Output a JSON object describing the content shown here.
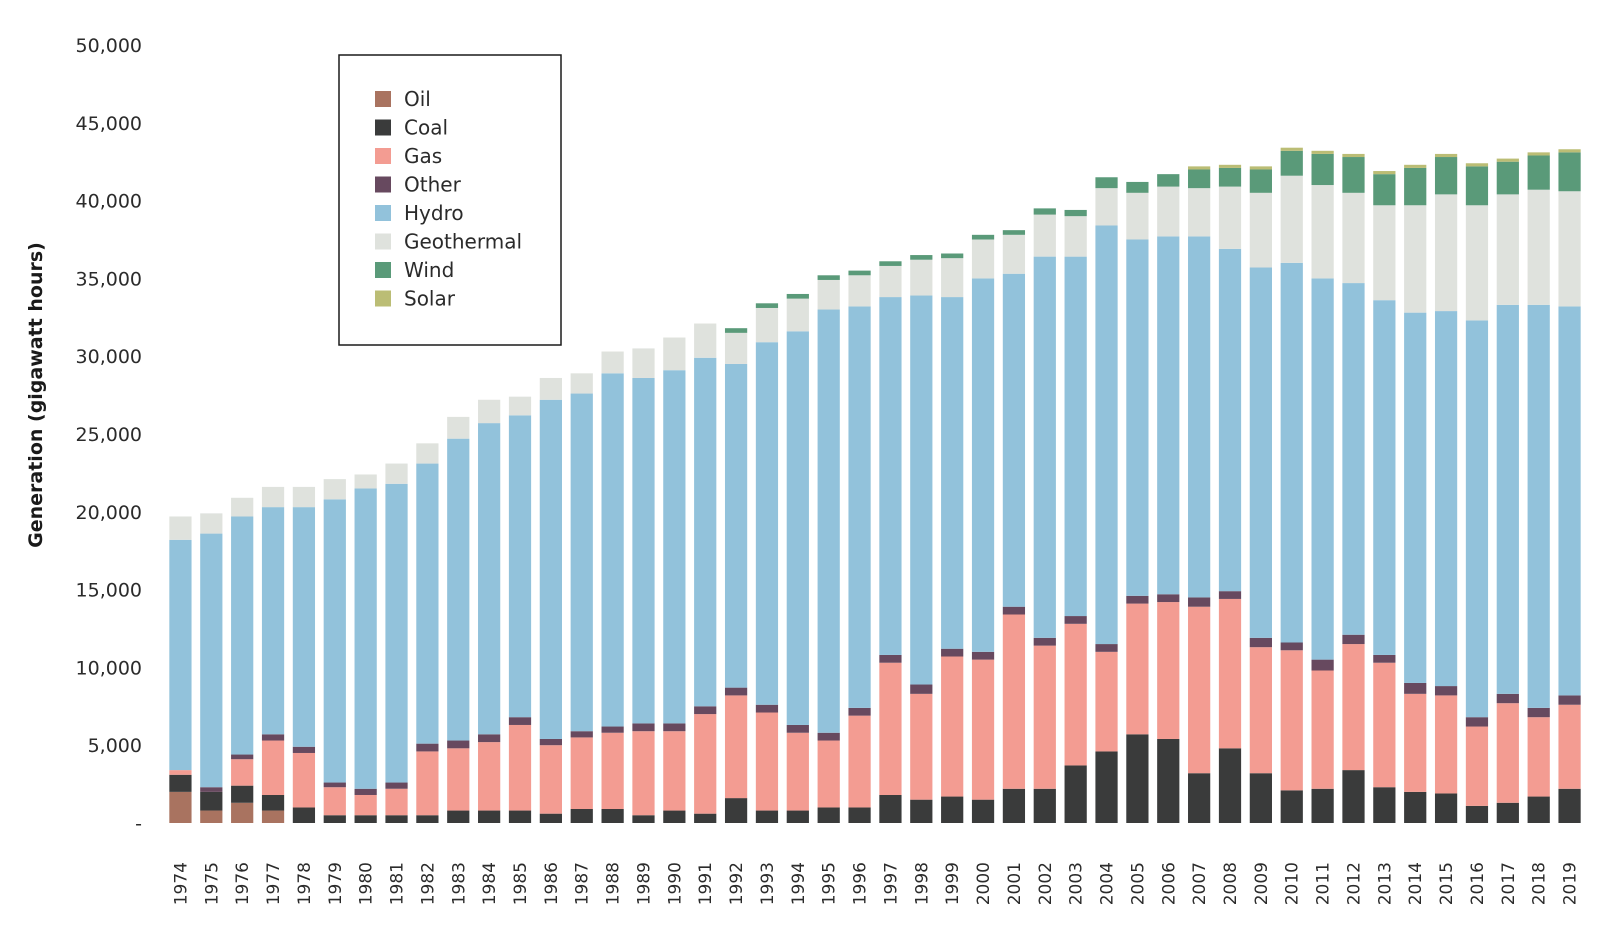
{
  "chart_data": {
    "type": "bar",
    "stacked": true,
    "title": "",
    "xlabel": "",
    "ylabel": "Generation (gigawatt hours)",
    "ylim": [
      0,
      50000
    ],
    "yticks": [
      0,
      5000,
      10000,
      15000,
      20000,
      25000,
      30000,
      35000,
      40000,
      45000,
      50000
    ],
    "ytick_labels": [
      "-",
      "5,000",
      "10,000",
      "15,000",
      "20,000",
      "25,000",
      "30,000",
      "35,000",
      "40,000",
      "45,000",
      "50,000"
    ],
    "grid": false,
    "legend_position": "top-left",
    "categories": [
      "1974",
      "1975",
      "1976",
      "1977",
      "1978",
      "1979",
      "1980",
      "1981",
      "1982",
      "1983",
      "1984",
      "1985",
      "1986",
      "1987",
      "1988",
      "1989",
      "1990",
      "1991",
      "1992",
      "1993",
      "1994",
      "1995",
      "1996",
      "1997",
      "1998",
      "1999",
      "2000",
      "2001",
      "2002",
      "2003",
      "2004",
      "2005",
      "2006",
      "2007",
      "2008",
      "2009",
      "2010",
      "2011",
      "2012",
      "2013",
      "2014",
      "2015",
      "2016",
      "2017",
      "2018",
      "2019"
    ],
    "series": [
      {
        "name": "Oil",
        "color": "#a97360",
        "values": [
          2000,
          800,
          1300,
          800,
          0,
          0,
          0,
          0,
          0,
          0,
          0,
          0,
          0,
          0,
          0,
          0,
          0,
          0,
          0,
          0,
          0,
          0,
          0,
          0,
          0,
          0,
          0,
          0,
          0,
          0,
          0,
          0,
          0,
          0,
          0,
          0,
          0,
          0,
          0,
          0,
          0,
          0,
          0,
          0,
          0,
          0
        ]
      },
      {
        "name": "Coal",
        "color": "#3a3b3b",
        "values": [
          1100,
          1200,
          1100,
          1000,
          1000,
          500,
          500,
          500,
          500,
          800,
          800,
          800,
          600,
          900,
          900,
          500,
          800,
          600,
          1600,
          800,
          800,
          1000,
          1000,
          1800,
          1500,
          1700,
          1500,
          2200,
          2200,
          3700,
          4600,
          5700,
          5400,
          3200,
          4800,
          3200,
          2100,
          2200,
          3400,
          2300,
          2000,
          1900,
          1100,
          1300,
          1700,
          2200
        ]
      },
      {
        "name": "Gas",
        "color": "#f39c92",
        "values": [
          300,
          0,
          1700,
          3500,
          3500,
          1800,
          1300,
          1700,
          4100,
          4000,
          4400,
          5500,
          4400,
          4600,
          4900,
          5400,
          5100,
          6400,
          6600,
          6300,
          5000,
          4300,
          5900,
          8500,
          6800,
          9000,
          9000,
          11200,
          9200,
          9100,
          6400,
          8400,
          8800,
          10700,
          9600,
          8100,
          9000,
          7600,
          8100,
          8000,
          6300,
          6300,
          5100,
          6400,
          5100,
          5400
        ]
      },
      {
        "name": "Other",
        "color": "#67495f",
        "values": [
          0,
          300,
          300,
          400,
          400,
          300,
          400,
          400,
          500,
          500,
          500,
          500,
          400,
          400,
          400,
          500,
          500,
          500,
          500,
          500,
          500,
          500,
          500,
          500,
          600,
          500,
          500,
          500,
          500,
          500,
          500,
          500,
          500,
          600,
          500,
          600,
          500,
          700,
          600,
          500,
          700,
          600,
          600,
          600,
          600,
          600
        ]
      },
      {
        "name": "Hydro",
        "color": "#92c2db",
        "values": [
          14800,
          16300,
          15300,
          14600,
          15400,
          18200,
          19300,
          19200,
          18000,
          19400,
          20000,
          19400,
          21800,
          21700,
          22700,
          22200,
          22700,
          22400,
          20800,
          23300,
          25300,
          27200,
          25800,
          23000,
          25000,
          22600,
          24000,
          21400,
          24500,
          23100,
          26900,
          22900,
          23000,
          23200,
          22000,
          23800,
          24400,
          24500,
          22600,
          22800,
          23800,
          24100,
          25500,
          25000,
          25900,
          25000
        ]
      },
      {
        "name": "Geothermal",
        "color": "#dfe2dd",
        "values": [
          1500,
          1300,
          1200,
          1300,
          1300,
          1300,
          900,
          1300,
          1300,
          1400,
          1500,
          1200,
          1400,
          1300,
          1400,
          1900,
          2100,
          2200,
          2000,
          2200,
          2100,
          1900,
          2000,
          2000,
          2300,
          2500,
          2500,
          2500,
          2700,
          2600,
          2400,
          3000,
          3200,
          3100,
          4000,
          4800,
          5600,
          6000,
          5800,
          6100,
          6900,
          7500,
          7400,
          7100,
          7400,
          7400
        ]
      },
      {
        "name": "Wind",
        "color": "#5a9a79",
        "values": [
          0,
          0,
          0,
          0,
          0,
          0,
          0,
          0,
          0,
          0,
          0,
          0,
          0,
          0,
          0,
          0,
          0,
          0,
          300,
          300,
          300,
          300,
          300,
          300,
          300,
          300,
          300,
          300,
          400,
          400,
          700,
          700,
          800,
          1200,
          1200,
          1500,
          1600,
          2000,
          2300,
          2000,
          2400,
          2400,
          2500,
          2100,
          2200,
          2500
        ]
      },
      {
        "name": "Solar",
        "color": "#bbbd75",
        "values": [
          0,
          0,
          0,
          0,
          0,
          0,
          0,
          0,
          0,
          0,
          0,
          0,
          0,
          0,
          0,
          0,
          0,
          0,
          0,
          0,
          0,
          0,
          0,
          0,
          0,
          0,
          0,
          0,
          0,
          0,
          0,
          0,
          0,
          200,
          200,
          200,
          200,
          200,
          200,
          200,
          200,
          200,
          200,
          200,
          200,
          200
        ]
      }
    ]
  }
}
